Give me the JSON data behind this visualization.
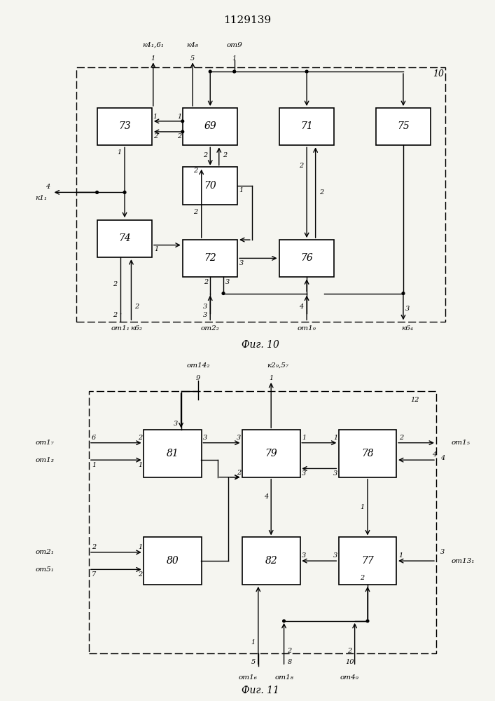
{
  "title": "1129139",
  "fig10_label": "Фиг. 10",
  "fig11_label": "Фиг. 11",
  "bg_color": "#f5f5f0"
}
